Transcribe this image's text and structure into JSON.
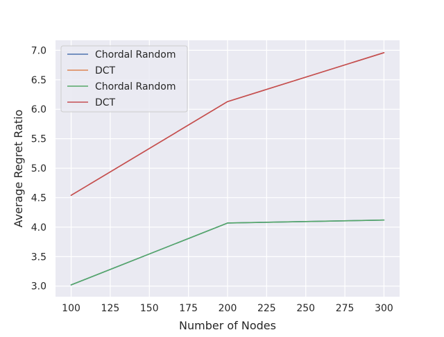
{
  "chart_data": {
    "type": "line",
    "title": "",
    "xlabel": "Number of Nodes",
    "ylabel": "Average Regret Ratio",
    "x": [
      100,
      200,
      300
    ],
    "xlim": [
      90,
      310
    ],
    "ylim": [
      2.82,
      7.17
    ],
    "xticks": [
      100,
      125,
      150,
      175,
      200,
      225,
      250,
      275,
      300
    ],
    "yticks": [
      3.0,
      3.5,
      4.0,
      4.5,
      5.0,
      5.5,
      6.0,
      6.5,
      7.0
    ],
    "xtick_labels": [
      "100",
      "125",
      "150",
      "175",
      "200",
      "225",
      "250",
      "275",
      "300"
    ],
    "ytick_labels": [
      "3.0",
      "3.5",
      "4.0",
      "4.5",
      "5.0",
      "5.5",
      "6.0",
      "6.5",
      "7.0"
    ],
    "grid": true,
    "background": "#eaeaf2",
    "legend_position": "upper-left",
    "series": [
      {
        "name": "Chordal Random",
        "color": "#4c72b0",
        "values": [
          3.02,
          4.07,
          4.12
        ]
      },
      {
        "name": "DCT",
        "color": "#dd8452",
        "values": [
          4.54,
          6.13,
          6.96
        ]
      },
      {
        "name": "Chordal Random",
        "color": "#55a868",
        "values": [
          3.02,
          4.07,
          4.12
        ]
      },
      {
        "name": "DCT",
        "color": "#c44e52",
        "values": [
          4.54,
          6.13,
          6.96
        ]
      }
    ]
  }
}
